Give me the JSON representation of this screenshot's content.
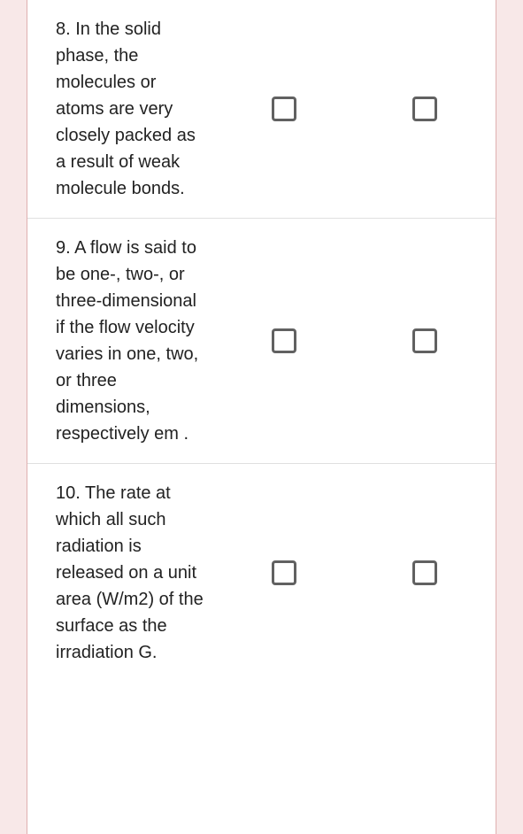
{
  "questions": [
    {
      "number": "8.",
      "text": "In the solid phase, the molecules or atoms are very closely packed as a result of weak molecule bonds."
    },
    {
      "number": "9.",
      "text": "A flow is said to be one-, two-, or three-dimensional if the flow velocity varies in one, two, or three dimensions, respectively em ."
    },
    {
      "number": "10.",
      "text": "The rate at which all such radiation is released on a unit area (W/m2) of the surface as the irradiation G."
    }
  ],
  "colors": {
    "page_bg": "#f8e8e8",
    "card_bg": "#ffffff",
    "card_border": "#e0b0b0",
    "divider": "#e0e0e0",
    "text": "#222222",
    "checkbox_border": "#616161"
  }
}
